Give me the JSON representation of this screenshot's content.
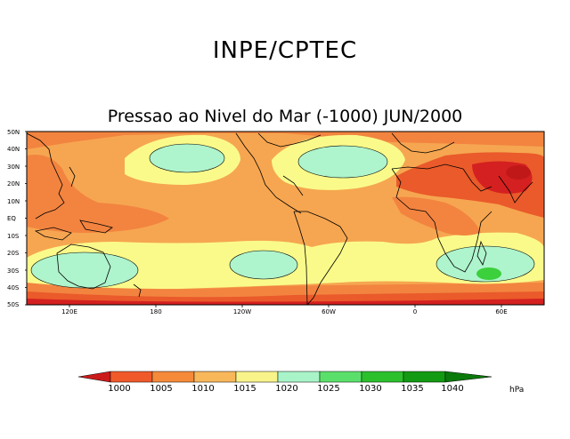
{
  "header": {
    "institution": "INPE/CPTEC",
    "subtitle": "Pressao ao Nivel do Mar (-1000) JUN/2000"
  },
  "map": {
    "latitude_labels": [
      "50N",
      "40N",
      "30N",
      "20N",
      "10N",
      "EQ",
      "10S",
      "20S",
      "30S",
      "40S",
      "50S"
    ],
    "longitude_labels": [
      "120E",
      "180",
      "120W",
      "60W",
      "0",
      "60E"
    ],
    "fields": [
      {
        "name": "western-pacific-low",
        "level": 1010
      },
      {
        "name": "north-pacific-high",
        "level": 1020
      },
      {
        "name": "north-atlantic-high",
        "level": 1020
      },
      {
        "name": "south-pacific-high",
        "level": 1020
      },
      {
        "name": "south-atlantic-high",
        "level": 1015
      },
      {
        "name": "australia-high",
        "level": 1020
      },
      {
        "name": "indian-ocean-high",
        "level": 1025
      },
      {
        "name": "asian-monsoon-low",
        "level": 1000
      }
    ]
  },
  "colorbar": {
    "labels": [
      "1000",
      "1005",
      "1010",
      "1015",
      "1020",
      "1025",
      "1030",
      "1035",
      "1040"
    ],
    "unit": "hPa",
    "colors": [
      "#cc1a1a",
      "#f05a2a",
      "#f58a3a",
      "#f8b85a",
      "#f8f48a",
      "#a8f4c8",
      "#5ae06a",
      "#2cc02c",
      "#129a12",
      "#0a7a0a"
    ]
  },
  "palette": {
    "c995": "#d42020",
    "c1000": "#ea5a2a",
    "c1005": "#f28440",
    "c1010": "#f6a650",
    "c1015": "#fafa8a",
    "c1020": "#aef4cc",
    "c1025": "#3cd03c"
  }
}
